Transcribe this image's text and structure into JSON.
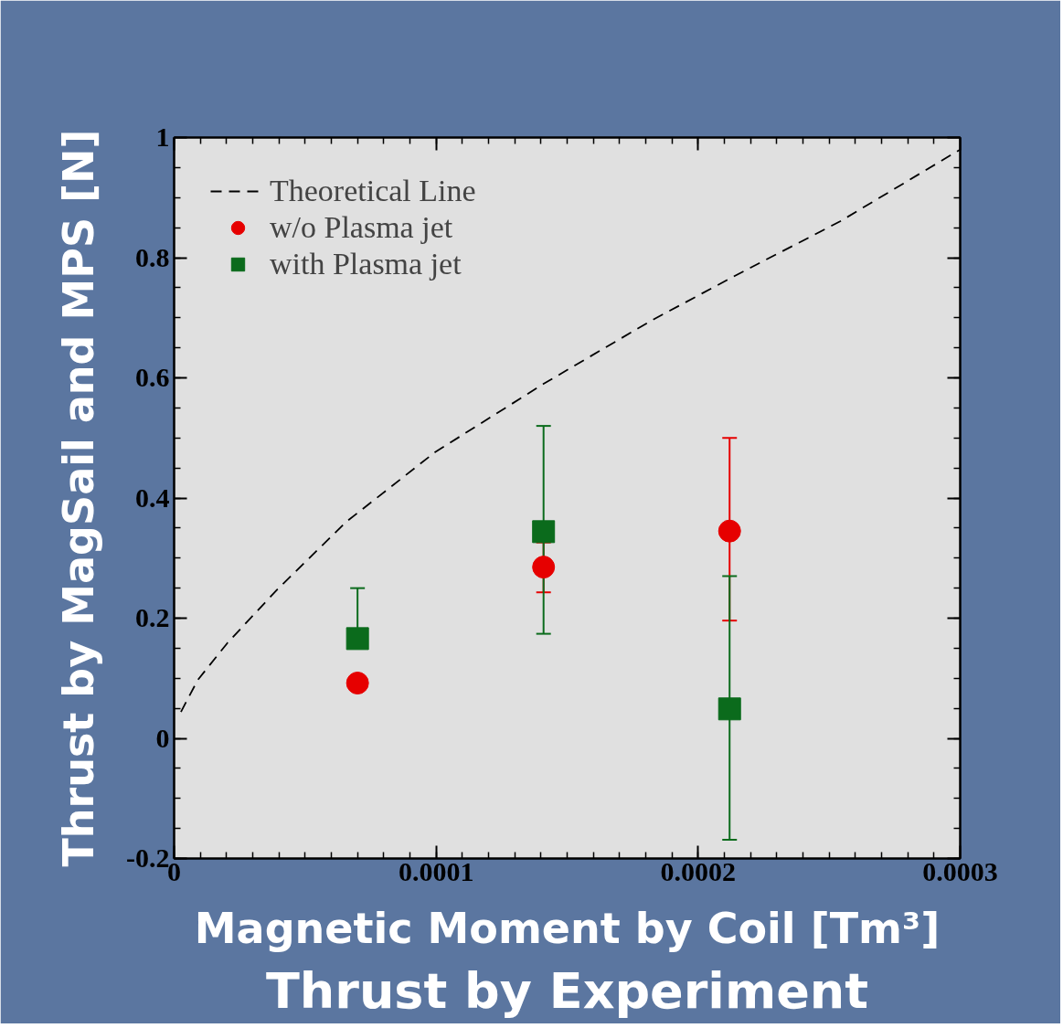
{
  "chart_data": {
    "type": "scatter",
    "xlabel": "Magnetic Moment by Coil [Tm³]",
    "ylabel": "Thrust by MagSail and MPS [N]",
    "annotations": [
      "Thrust by Experiment"
    ],
    "xlim": [
      0,
      0.0003
    ],
    "ylim": [
      -0.2,
      1
    ],
    "xticks": [
      0,
      0.0001,
      0.0002,
      0.0003
    ],
    "yticks": [
      -0.2,
      0,
      0.2,
      0.4,
      0.6,
      0.8,
      1
    ],
    "grid": false,
    "legend": "top left",
    "series": [
      {
        "name": "Theoretical Line",
        "type": "line",
        "line_style": "dashed",
        "marker": "none",
        "color": "#000000",
        "x": [
          2.6e-06,
          9e-06,
          2.04e-05,
          3.92e-05,
          6.56e-05,
          9.95e-05,
          0.000141,
          0.0001824,
          0.0002163,
          0.000254,
          0.0003
        ],
        "values": [
          0.044,
          0.097,
          0.159,
          0.247,
          0.36,
          0.476,
          0.59,
          0.696,
          0.775,
          0.86,
          0.98
        ]
      },
      {
        "name": "w/o Plasma jet",
        "marker": "circle",
        "color": "#e60000",
        "x": [
          7e-05,
          0.000141,
          0.000212
        ],
        "values": [
          0.092,
          0.285,
          0.345
        ],
        "errors": [
          null,
          [
            0.243,
            0.326
          ],
          [
            0.196,
            0.5
          ]
        ]
      },
      {
        "name": "with Plasma jet",
        "marker": "square",
        "color": "#0b6b1c",
        "x": [
          7e-05,
          0.000141,
          0.000212
        ],
        "values": [
          0.166,
          0.344,
          0.049
        ],
        "errors": [
          [
            0.166,
            0.25
          ],
          [
            0.174,
            0.52
          ],
          [
            -0.169,
            0.27
          ]
        ]
      }
    ]
  }
}
